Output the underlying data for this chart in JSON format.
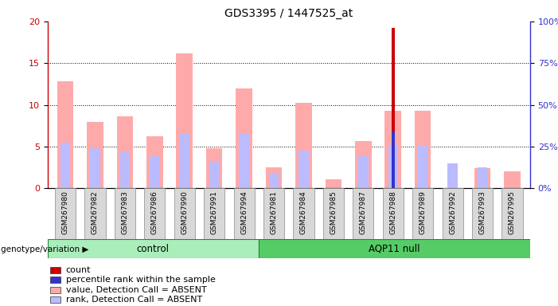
{
  "title": "GDS3395 / 1447525_at",
  "samples": [
    "GSM267980",
    "GSM267982",
    "GSM267983",
    "GSM267986",
    "GSM267990",
    "GSM267991",
    "GSM267994",
    "GSM267981",
    "GSM267984",
    "GSM267985",
    "GSM267987",
    "GSM267988",
    "GSM267989",
    "GSM267992",
    "GSM267993",
    "GSM267995"
  ],
  "ctrl_count": 7,
  "aqp_count": 9,
  "value_absent": [
    12.8,
    7.9,
    8.6,
    6.2,
    16.2,
    4.8,
    12.0,
    2.5,
    10.2,
    1.1,
    5.7,
    9.3,
    9.3,
    0.0,
    2.4,
    2.0
  ],
  "rank_absent": [
    5.5,
    4.8,
    4.3,
    3.8,
    6.6,
    3.3,
    6.6,
    1.8,
    4.5,
    0.0,
    3.8,
    5.2,
    5.2,
    3.0,
    2.5,
    0.0
  ],
  "count": [
    0.0,
    0.0,
    0.0,
    0.0,
    0.0,
    0.0,
    0.0,
    0.0,
    0.0,
    0.0,
    0.0,
    19.2,
    0.0,
    0.0,
    0.0,
    0.0
  ],
  "prank": [
    0.0,
    0.0,
    0.0,
    0.0,
    0.0,
    0.0,
    0.0,
    0.0,
    0.0,
    0.0,
    0.0,
    6.8,
    0.0,
    0.0,
    0.0,
    0.0
  ],
  "ylim_left": [
    0,
    20
  ],
  "ylim_right": [
    0,
    100
  ],
  "yticks_left": [
    0,
    5,
    10,
    15,
    20
  ],
  "yticks_right": [
    0,
    25,
    50,
    75,
    100
  ],
  "color_count": "#cc0000",
  "color_prank": "#3333cc",
  "color_value_absent": "#ffaaaa",
  "color_rank_absent": "#bbbbff",
  "color_control_bg": "#aaeebb",
  "color_aqp11_bg": "#55cc66",
  "bar_width": 0.55,
  "legend_items": [
    {
      "label": "count",
      "color": "#cc0000"
    },
    {
      "label": "percentile rank within the sample",
      "color": "#3333cc"
    },
    {
      "label": "value, Detection Call = ABSENT",
      "color": "#ffaaaa"
    },
    {
      "label": "rank, Detection Call = ABSENT",
      "color": "#bbbbff"
    }
  ]
}
